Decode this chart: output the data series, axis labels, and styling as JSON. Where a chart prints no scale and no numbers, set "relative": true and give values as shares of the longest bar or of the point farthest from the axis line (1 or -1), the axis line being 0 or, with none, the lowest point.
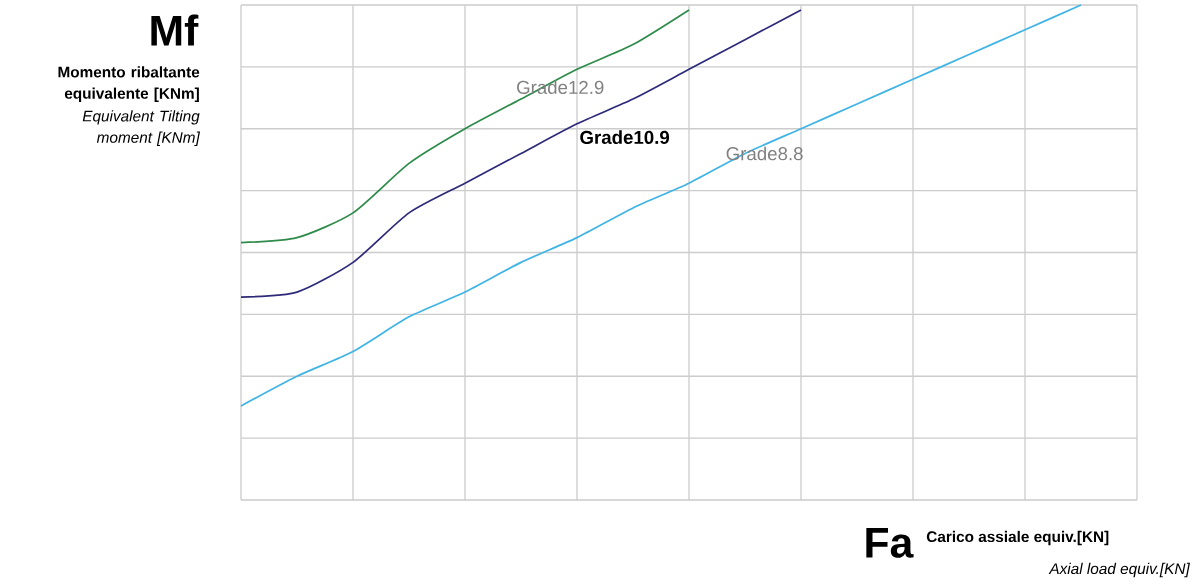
{
  "chart_data": {
    "type": "line",
    "relative": true,
    "grid": true,
    "categories": [
      null,
      null,
      null,
      null,
      null,
      null,
      null,
      null,
      null,
      null,
      null,
      null,
      null,
      null,
      null,
      null,
      null
    ],
    "series": [
      {
        "name": "Grade12.9",
        "color": "#2e8b4a",
        "values": [
          0.52,
          0.53,
          0.58,
          0.68,
          0.75,
          0.81,
          0.87,
          0.92,
          0.99,
          null,
          null,
          null,
          null,
          null,
          null,
          null,
          null
        ]
      },
      {
        "name": "Grade10.9",
        "color": "#2e2a7a",
        "values": [
          0.41,
          0.42,
          0.48,
          0.58,
          0.64,
          0.7,
          0.76,
          0.81,
          0.87,
          0.93,
          0.99,
          null,
          null,
          null,
          null,
          null,
          null
        ]
      },
      {
        "name": "Grade8.8",
        "color": "#3fb4e5",
        "values": [
          0.19,
          0.25,
          0.3,
          0.37,
          0.42,
          0.48,
          0.53,
          0.59,
          0.64,
          0.7,
          0.75,
          0.8,
          0.85,
          0.9,
          0.95,
          1.0,
          null
        ]
      }
    ],
    "ylabel": "Mf",
    "xlabel": "Fa",
    "annotations": [
      "Momento ribaltante equivalente [KNm]",
      "Equivalent Tilting moment [KNm]",
      "Carico assiale equiv.[KN]",
      "Axial load equiv.[KN]"
    ]
  }
}
